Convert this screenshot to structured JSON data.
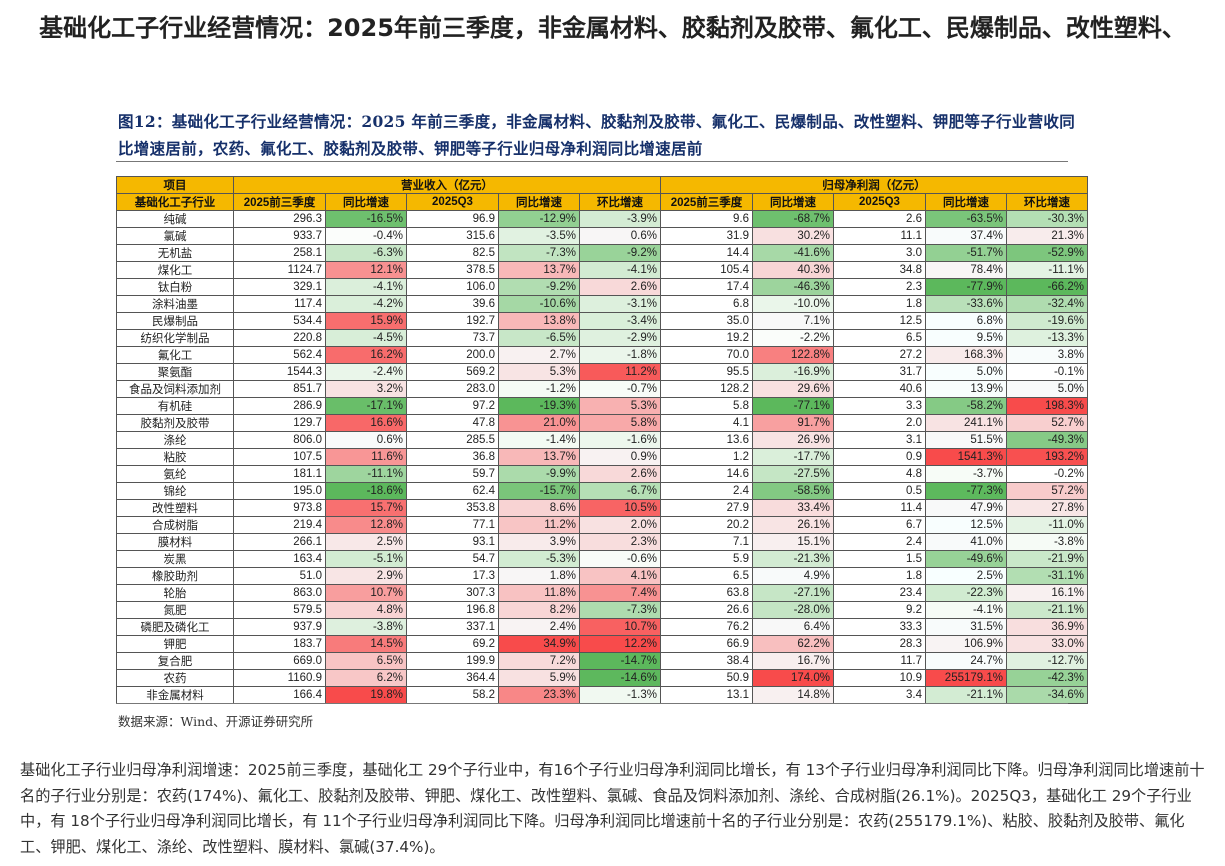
{
  "page_title": "基础化工子行业经营情况：2025年前三季度，非金属材料、胶黏剂及胶带、氟化工、民爆制品、改性塑料、",
  "figure_caption": "图12：基础化工子行业经营情况：2025 年前三季度，非金属材料、胶黏剂及胶带、氟化工、民爆制品、改性塑料、钾肥等子行业营收同比增速居前，农药、氟化工、胶黏剂及胶带、钾肥等子行业归母净利润同比增速居前",
  "table": {
    "header_row1": {
      "item": "项目",
      "revenue_group": "营业收入（亿元）",
      "profit_group": "归母净利润（亿元）"
    },
    "header_row2": [
      "基础化工子行业",
      "2025前三季度",
      "同比增速",
      "2025Q3",
      "同比增速",
      "环比增速",
      "2025前三季度",
      "同比增速",
      "2025Q3",
      "同比增速",
      "环比增速"
    ],
    "rows": [
      [
        "纯碱",
        "296.3",
        "-16.5%",
        "96.9",
        "-12.9%",
        "-3.9%",
        "9.6",
        "-68.7%",
        "2.6",
        "-63.5%",
        "-30.3%"
      ],
      [
        "氯碱",
        "933.7",
        "-0.4%",
        "315.6",
        "-3.5%",
        "0.6%",
        "31.9",
        "30.2%",
        "11.1",
        "37.4%",
        "21.3%"
      ],
      [
        "无机盐",
        "258.1",
        "-6.3%",
        "82.5",
        "-7.3%",
        "-9.2%",
        "14.4",
        "-41.6%",
        "3.0",
        "-51.7%",
        "-52.9%"
      ],
      [
        "煤化工",
        "1124.7",
        "12.1%",
        "378.5",
        "13.7%",
        "-4.1%",
        "105.4",
        "40.3%",
        "34.8",
        "78.4%",
        "-11.1%"
      ],
      [
        "钛白粉",
        "329.1",
        "-4.1%",
        "106.0",
        "-9.2%",
        "2.6%",
        "17.4",
        "-46.3%",
        "2.3",
        "-77.9%",
        "-66.2%"
      ],
      [
        "涂料油墨",
        "117.4",
        "-4.2%",
        "39.6",
        "-10.6%",
        "-3.1%",
        "6.8",
        "-10.0%",
        "1.8",
        "-33.6%",
        "-32.4%"
      ],
      [
        "民爆制品",
        "534.4",
        "15.9%",
        "192.7",
        "13.8%",
        "-3.4%",
        "35.0",
        "7.1%",
        "12.5",
        "6.8%",
        "-19.6%"
      ],
      [
        "纺织化学制品",
        "220.8",
        "-4.5%",
        "73.7",
        "-6.5%",
        "-2.9%",
        "19.2",
        "-2.2%",
        "6.5",
        "9.5%",
        "-13.3%"
      ],
      [
        "氟化工",
        "562.4",
        "16.2%",
        "200.0",
        "2.7%",
        "-1.8%",
        "70.0",
        "122.8%",
        "27.2",
        "168.3%",
        "3.8%"
      ],
      [
        "聚氨酯",
        "1544.3",
        "-2.4%",
        "569.2",
        "5.3%",
        "11.2%",
        "95.5",
        "-16.9%",
        "31.7",
        "5.0%",
        "-0.1%"
      ],
      [
        "食品及饲料添加剂",
        "851.7",
        "3.2%",
        "283.0",
        "-1.2%",
        "-0.7%",
        "128.2",
        "29.6%",
        "40.6",
        "13.9%",
        "5.0%"
      ],
      [
        "有机硅",
        "286.9",
        "-17.1%",
        "97.2",
        "-19.3%",
        "5.3%",
        "5.8",
        "-77.1%",
        "3.3",
        "-58.2%",
        "198.3%"
      ],
      [
        "胶黏剂及胶带",
        "129.7",
        "16.6%",
        "47.8",
        "21.0%",
        "5.8%",
        "4.1",
        "91.7%",
        "2.0",
        "241.1%",
        "52.7%"
      ],
      [
        "涤纶",
        "806.0",
        "0.6%",
        "285.5",
        "-1.4%",
        "-1.6%",
        "13.6",
        "26.9%",
        "3.1",
        "51.5%",
        "-49.3%"
      ],
      [
        "粘胶",
        "107.5",
        "11.6%",
        "36.8",
        "13.7%",
        "0.9%",
        "1.2",
        "-17.7%",
        "0.9",
        "1541.3%",
        "193.2%"
      ],
      [
        "氨纶",
        "181.1",
        "-11.1%",
        "59.7",
        "-9.9%",
        "2.6%",
        "14.6",
        "-27.5%",
        "4.8",
        "-3.7%",
        "-0.2%"
      ],
      [
        "锦纶",
        "195.0",
        "-18.6%",
        "62.4",
        "-15.7%",
        "-6.7%",
        "2.4",
        "-58.5%",
        "0.5",
        "-77.3%",
        "57.2%"
      ],
      [
        "改性塑料",
        "973.8",
        "15.7%",
        "353.8",
        "8.6%",
        "10.5%",
        "27.9",
        "33.4%",
        "11.4",
        "47.9%",
        "27.8%"
      ],
      [
        "合成树脂",
        "219.4",
        "12.8%",
        "77.1",
        "11.2%",
        "2.0%",
        "20.2",
        "26.1%",
        "6.7",
        "12.5%",
        "-11.0%"
      ],
      [
        "膜材料",
        "266.1",
        "2.5%",
        "93.1",
        "3.9%",
        "2.3%",
        "7.1",
        "15.1%",
        "2.4",
        "41.0%",
        "-3.8%"
      ],
      [
        "炭黑",
        "163.4",
        "-5.1%",
        "54.7",
        "-5.3%",
        "-0.6%",
        "5.9",
        "-21.3%",
        "1.5",
        "-49.6%",
        "-21.9%"
      ],
      [
        "橡胶助剂",
        "51.0",
        "2.9%",
        "17.3",
        "1.8%",
        "4.1%",
        "6.5",
        "4.9%",
        "1.8",
        "2.5%",
        "-31.1%"
      ],
      [
        "轮胎",
        "863.0",
        "10.7%",
        "307.3",
        "11.8%",
        "7.4%",
        "63.8",
        "-27.1%",
        "23.4",
        "-22.3%",
        "16.1%"
      ],
      [
        "氮肥",
        "579.5",
        "4.8%",
        "196.8",
        "8.2%",
        "-7.3%",
        "26.6",
        "-28.0%",
        "9.2",
        "-4.1%",
        "-21.1%"
      ],
      [
        "磷肥及磷化工",
        "937.9",
        "-3.8%",
        "337.1",
        "2.4%",
        "10.7%",
        "76.2",
        "6.4%",
        "33.3",
        "31.5%",
        "36.9%"
      ],
      [
        "钾肥",
        "183.7",
        "14.5%",
        "69.2",
        "34.9%",
        "12.2%",
        "66.9",
        "62.2%",
        "28.3",
        "106.9%",
        "33.0%"
      ],
      [
        "复合肥",
        "669.0",
        "6.5%",
        "199.9",
        "7.2%",
        "-14.7%",
        "38.4",
        "16.7%",
        "11.7",
        "24.7%",
        "-12.7%"
      ],
      [
        "农药",
        "1160.9",
        "6.2%",
        "364.4",
        "5.9%",
        "-14.6%",
        "50.9",
        "174.0%",
        "10.9",
        "255179.1%",
        "-42.3%"
      ],
      [
        "非金属材料",
        "166.4",
        "19.8%",
        "58.2",
        "23.3%",
        "-1.3%",
        "13.1",
        "14.8%",
        "3.4",
        "-21.1%",
        "-34.6%"
      ]
    ]
  },
  "source_note": "数据来源：Wind、开源证券研究所",
  "summary_text": "基础化工子行业归母净利润增速：2025前三季度，基础化工 29个子行业中，有16个子行业归母净利润同比增长，有 13个子行业归母净利润同比下降。归母净利润同比增速前十名的子行业分别是：农药(174%)、氟化工、胶黏剂及胶带、钾肥、煤化工、改性塑料、氯碱、食品及饲料添加剂、涤纶、合成树脂(26.1%)。2025Q3，基础化工 29个子行业中，有 18个子行业归母净利润同比增长，有 11个子行业归母净利润同比下降。归母净利润同比增速前十名的子行业分别是：农药(255179.1%)、粘胶、胶黏剂及胶带、氟化工、钾肥、煤化工、涤纶、改性塑料、膜材料、氯碱(37.4%)。",
  "colors": {
    "header_fill": "#f5b800",
    "caption_color": "#16306a",
    "positive_max": "#f24b4b",
    "negative_max": "#5cb85c"
  }
}
